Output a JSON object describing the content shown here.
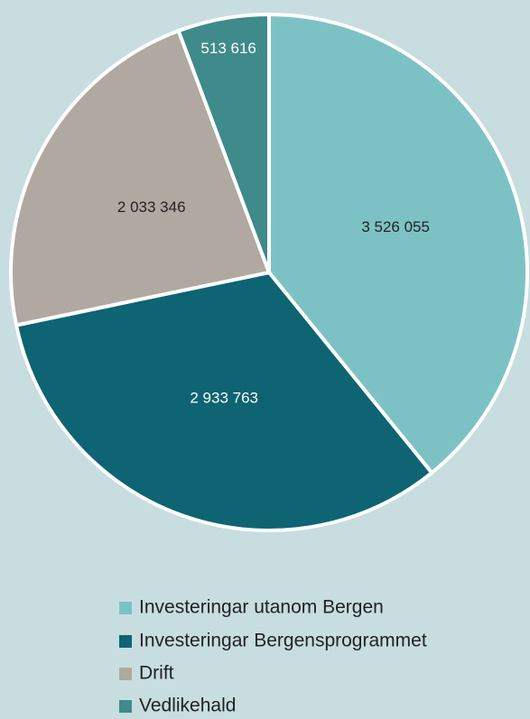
{
  "chart_data": {
    "type": "pie",
    "categories": [
      "Investeringar utanom Bergen",
      "Investeringar Bergensprogrammet",
      "Drift",
      "Vedlikehald"
    ],
    "values": [
      3526055,
      2933763,
      2033346,
      513616
    ],
    "value_labels": [
      "3 526 055",
      "2 933 763",
      "2 033 346",
      "513 616"
    ],
    "colors": [
      "#7cc2c5",
      "#0e6472",
      "#b0a9a1",
      "#3f8a8b"
    ]
  }
}
